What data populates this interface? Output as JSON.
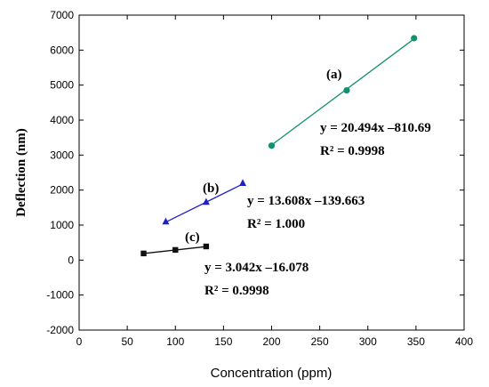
{
  "chart_data": {
    "type": "scatter",
    "xlabel": "Concentration (ppm)",
    "ylabel": "Deflection (nm)",
    "xlim": [
      0,
      400
    ],
    "ylim": [
      -2000,
      7000
    ],
    "xticks": [
      0,
      50,
      100,
      150,
      200,
      250,
      300,
      350,
      400
    ],
    "yticks": [
      -2000,
      -1000,
      0,
      1000,
      2000,
      3000,
      4000,
      5000,
      6000,
      7000
    ],
    "grid": false,
    "series": [
      {
        "name": "(a)",
        "color": "#129170",
        "marker": "circle",
        "x": [
          200,
          278,
          348
        ],
        "y": [
          3270,
          4850,
          6340
        ],
        "fit": {
          "slope": 20.494,
          "intercept": -810.69
        }
      },
      {
        "name": "(b)",
        "color": "#1f1fc8",
        "marker": "triangle",
        "x": [
          90,
          132,
          170
        ],
        "y": [
          1100,
          1660,
          2200
        ],
        "fit": {
          "slope": 13.608,
          "intercept": -139.663
        }
      },
      {
        "name": "(c)",
        "color": "#111111",
        "marker": "square",
        "x": [
          67,
          100,
          132
        ],
        "y": [
          190,
          290,
          390
        ],
        "fit": {
          "slope": 3.042,
          "intercept": -16.078
        }
      }
    ],
    "annotations": [
      {
        "series": "(a)",
        "label": "(a)",
        "equation": "y = 20.494x –810.69",
        "r2": "R² = 0.9998"
      },
      {
        "series": "(b)",
        "label": "(b)",
        "equation": "y = 13.608x –139.663",
        "r2": "R² = 1.000"
      },
      {
        "series": "(c)",
        "label": "(c)",
        "equation": "y = 3.042x  –16.078",
        "r2": "R² = 0.9998"
      }
    ]
  }
}
